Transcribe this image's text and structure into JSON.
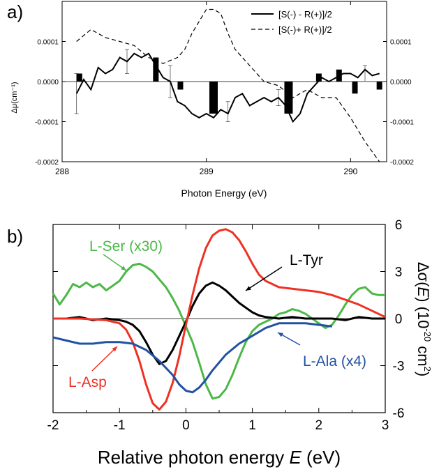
{
  "figure": {
    "panel_a_tag": "a)",
    "panel_b_tag": "b)"
  },
  "chart_data": [
    {
      "type": "line",
      "panel": "a)",
      "xlabel": "Photon Energy (eV)",
      "ylabel": "Δμ(cm⁻¹)",
      "xlim": [
        288.0,
        290.25
      ],
      "ylim": [
        -0.0002,
        0.0002
      ],
      "grid": false,
      "legend": "top-right",
      "x_ticks": [
        {
          "value": 288,
          "label": "288"
        },
        {
          "value": 289,
          "label": "289"
        },
        {
          "value": 290,
          "label": "290"
        }
      ],
      "y_ticks": [
        {
          "value": 0.0001,
          "label": "0.0001"
        },
        {
          "value": 0.0,
          "label": "0.0000"
        },
        {
          "value": -0.0001,
          "label": "-0.0001"
        },
        {
          "value": -0.0002,
          "label": "-0.0002"
        }
      ],
      "series": [
        {
          "name": "[S(-) - R(+)]/2",
          "style": "solid",
          "x": [
            288.1,
            288.15,
            288.2,
            288.25,
            288.3,
            288.35,
            288.4,
            288.45,
            288.5,
            288.55,
            288.6,
            288.65,
            288.7,
            288.75,
            288.8,
            288.85,
            288.9,
            288.95,
            289.0,
            289.05,
            289.1,
            289.15,
            289.2,
            289.25,
            289.3,
            289.35,
            289.4,
            289.45,
            289.5,
            289.55,
            289.6,
            289.65,
            289.7,
            289.75,
            289.8,
            289.85,
            289.9,
            289.95,
            290.0,
            290.05,
            290.1,
            290.15,
            290.2
          ],
          "y": [
            -3e-05,
            5e-06,
            -2e-05,
            3.5e-05,
            2e-05,
            3e-05,
            6e-05,
            5e-05,
            7e-05,
            6e-05,
            7e-05,
            4e-05,
            1e-05,
            0.0,
            -5e-05,
            -6e-05,
            -8e-05,
            -9e-05,
            -8e-05,
            -9e-05,
            -7e-05,
            -8e-05,
            -4e-05,
            -3e-05,
            -6e-05,
            -5e-05,
            -4e-05,
            -5e-05,
            -4e-05,
            -6e-05,
            -0.0001,
            -8e-05,
            -3e-05,
            -1e-05,
            1e-05,
            0.0,
            1e-05,
            2e-05,
            2e-05,
            1e-05,
            3e-05,
            1.5e-05,
            2e-05
          ]
        },
        {
          "name": "[S(-)+ R(+)]/2",
          "style": "dashed",
          "x": [
            288.1,
            288.2,
            288.3,
            288.4,
            288.5,
            288.6,
            288.7,
            288.8,
            288.85,
            288.9,
            288.95,
            289.0,
            289.05,
            289.1,
            289.15,
            289.2,
            289.3,
            289.4,
            289.5,
            289.6,
            289.7,
            289.8,
            289.9,
            290.0,
            290.1,
            290.2
          ],
          "y": [
            0.0001,
            0.00013,
            0.00011,
            0.0001,
            9e-05,
            6e-05,
            4.5e-05,
            6e-05,
            8e-05,
            0.00012,
            0.00015,
            0.00018,
            0.00018,
            0.00017,
            0.00012,
            8e-05,
            4e-05,
            0.0,
            -1e-05,
            -4e-05,
            -2e-05,
            -4e-05,
            -4e-05,
            -9e-05,
            -0.00015,
            -0.0002
          ]
        }
      ],
      "bars": {
        "x": [
          288.12,
          288.65,
          288.82,
          289.05,
          289.57,
          289.78,
          289.92,
          290.03,
          290.2
        ],
        "y": [
          2e-05,
          6e-05,
          -2e-05,
          -8e-05,
          -8e-05,
          2e-05,
          3e-05,
          -3e-05,
          -2e-05
        ]
      },
      "error_bars": [
        {
          "x": 288.1,
          "y": -3e-05,
          "lo": -8e-05,
          "hi": 2e-05
        },
        {
          "x": 288.45,
          "y": 5e-05,
          "lo": 2e-05,
          "hi": 8e-05
        },
        {
          "x": 288.75,
          "y": 0.0,
          "lo": -4e-05,
          "hi": 4e-05
        },
        {
          "x": 289.15,
          "y": -8e-05,
          "lo": -0.0001,
          "hi": -5e-05
        },
        {
          "x": 289.5,
          "y": -4e-05,
          "lo": -6e-05,
          "hi": -2e-05
        },
        {
          "x": 290.1,
          "y": 3e-05,
          "lo": 0.0,
          "hi": 4e-05
        }
      ]
    },
    {
      "type": "line",
      "panel": "b)",
      "xlabel": "Relative photon energy",
      "xlabel_var": "E",
      "xlabel_unit": "(eV)",
      "ylabel_left": "Δσ(",
      "ylabel_var": "E",
      "ylabel_mid": ") (10",
      "ylabel_exp": "-20",
      "ylabel_unit": " cm",
      "ylabel_exp2": "2",
      "ylabel_close": ")",
      "xlim": [
        -2,
        3
      ],
      "ylim": [
        -6,
        6
      ],
      "grid": false,
      "x_ticks": [
        {
          "value": -2,
          "label": "-2"
        },
        {
          "value": -1,
          "label": "-1"
        },
        {
          "value": 0,
          "label": "0"
        },
        {
          "value": 1,
          "label": "1"
        },
        {
          "value": 2,
          "label": "2"
        },
        {
          "value": 3,
          "label": "3"
        }
      ],
      "y_ticks": [
        {
          "value": 6,
          "label": "6"
        },
        {
          "value": 3,
          "label": "3"
        },
        {
          "value": 0,
          "label": "0"
        },
        {
          "value": -3,
          "label": "-3"
        },
        {
          "value": -6,
          "label": "-6"
        }
      ],
      "series": [
        {
          "name": "L-Ser (x30)",
          "color": "#4cb848",
          "x": [
            -2.0,
            -1.9,
            -1.8,
            -1.7,
            -1.6,
            -1.5,
            -1.4,
            -1.3,
            -1.2,
            -1.1,
            -1.0,
            -0.9,
            -0.8,
            -0.7,
            -0.6,
            -0.5,
            -0.4,
            -0.3,
            -0.2,
            -0.1,
            0.0,
            0.1,
            0.2,
            0.3,
            0.4,
            0.5,
            0.6,
            0.7,
            0.8,
            0.9,
            1.0,
            1.1,
            1.2,
            1.3,
            1.4,
            1.5,
            1.6,
            1.7,
            1.8,
            1.9,
            2.0,
            2.1,
            2.2,
            2.3,
            2.4,
            2.5,
            2.6,
            2.7,
            2.8,
            2.9,
            3.0
          ],
          "y": [
            1.6,
            0.9,
            1.5,
            2.2,
            2.0,
            2.3,
            2.0,
            2.2,
            1.8,
            2.1,
            2.4,
            3.0,
            3.4,
            3.5,
            3.3,
            3.0,
            2.5,
            2.0,
            1.3,
            0.5,
            -0.5,
            -1.5,
            -2.8,
            -4.2,
            -5.1,
            -5.0,
            -4.5,
            -3.6,
            -2.5,
            -1.5,
            -0.8,
            -0.4,
            -0.2,
            0.0,
            0.3,
            0.4,
            0.6,
            0.5,
            0.3,
            0.0,
            -0.3,
            -0.6,
            -0.4,
            0.2,
            0.9,
            1.5,
            1.9,
            2.0,
            1.6,
            1.5,
            1.5
          ]
        },
        {
          "name": "L-Tyr",
          "color": "#000000",
          "x": [
            -2.0,
            -1.8,
            -1.6,
            -1.4,
            -1.2,
            -1.0,
            -0.9,
            -0.8,
            -0.7,
            -0.6,
            -0.5,
            -0.4,
            -0.3,
            -0.2,
            -0.1,
            0.0,
            0.1,
            0.2,
            0.3,
            0.4,
            0.5,
            0.6,
            0.7,
            0.8,
            0.9,
            1.0,
            1.1,
            1.2,
            1.4,
            1.6,
            1.8,
            2.0,
            2.2,
            2.4,
            2.6,
            2.8,
            3.0
          ],
          "y": [
            0.0,
            0.0,
            0.1,
            -0.1,
            0.0,
            -0.1,
            -0.2,
            -0.4,
            -0.8,
            -1.5,
            -2.3,
            -2.9,
            -2.7,
            -2.0,
            -1.1,
            -0.2,
            0.8,
            1.6,
            2.1,
            2.3,
            2.1,
            1.8,
            1.4,
            1.0,
            0.7,
            0.4,
            0.2,
            0.1,
            0.0,
            0.1,
            0.0,
            0.0,
            0.0,
            -0.1,
            0.1,
            0.0,
            0.0
          ]
        },
        {
          "name": "L-Asp",
          "color": "#ee3124",
          "x": [
            -2.0,
            -1.6,
            -1.2,
            -1.0,
            -0.9,
            -0.8,
            -0.7,
            -0.6,
            -0.5,
            -0.4,
            -0.3,
            -0.2,
            -0.1,
            0.0,
            0.1,
            0.2,
            0.3,
            0.4,
            0.5,
            0.6,
            0.7,
            0.8,
            0.9,
            1.0,
            1.1,
            1.2,
            1.4,
            1.6,
            1.8,
            2.0,
            2.2,
            2.4,
            2.6,
            2.8,
            3.0
          ],
          "y": [
            0.0,
            0.0,
            -0.1,
            -0.3,
            -0.7,
            -1.5,
            -2.7,
            -4.2,
            -5.4,
            -5.8,
            -5.3,
            -4.1,
            -2.4,
            -0.4,
            1.5,
            3.2,
            4.5,
            5.3,
            5.6,
            5.7,
            5.5,
            5.0,
            4.3,
            3.5,
            2.8,
            2.4,
            2.0,
            1.9,
            1.8,
            1.7,
            1.5,
            1.2,
            0.9,
            0.5,
            0.1
          ]
        },
        {
          "name": "L-Ala (x4)",
          "color": "#2251a3",
          "x": [
            -2.0,
            -1.8,
            -1.6,
            -1.4,
            -1.2,
            -1.0,
            -0.8,
            -0.6,
            -0.4,
            -0.2,
            -0.1,
            0.0,
            0.1,
            0.2,
            0.3,
            0.4,
            0.6,
            0.8,
            1.0,
            1.2,
            1.4,
            1.6,
            1.8,
            2.0,
            2.2
          ],
          "y": [
            -1.2,
            -1.4,
            -1.6,
            -1.6,
            -1.5,
            -1.5,
            -1.6,
            -2.0,
            -2.7,
            -3.6,
            -4.2,
            -4.6,
            -4.7,
            -4.4,
            -3.9,
            -3.3,
            -2.3,
            -1.6,
            -1.1,
            -0.6,
            -0.3,
            -0.3,
            -0.3,
            -0.4,
            -0.5
          ]
        }
      ],
      "annotations": [
        {
          "text": "L-Ser (x30)",
          "target_series": "L-Ser (x30)",
          "color": "#4cb848"
        },
        {
          "text": "L-Tyr",
          "target_series": "L-Tyr",
          "color": "#000000"
        },
        {
          "text": "L-Asp",
          "target_series": "L-Asp",
          "color": "#ee3124"
        },
        {
          "text": "L-Ala (x4)",
          "target_series": "L-Ala (x4)",
          "color": "#2251a3"
        }
      ]
    }
  ]
}
